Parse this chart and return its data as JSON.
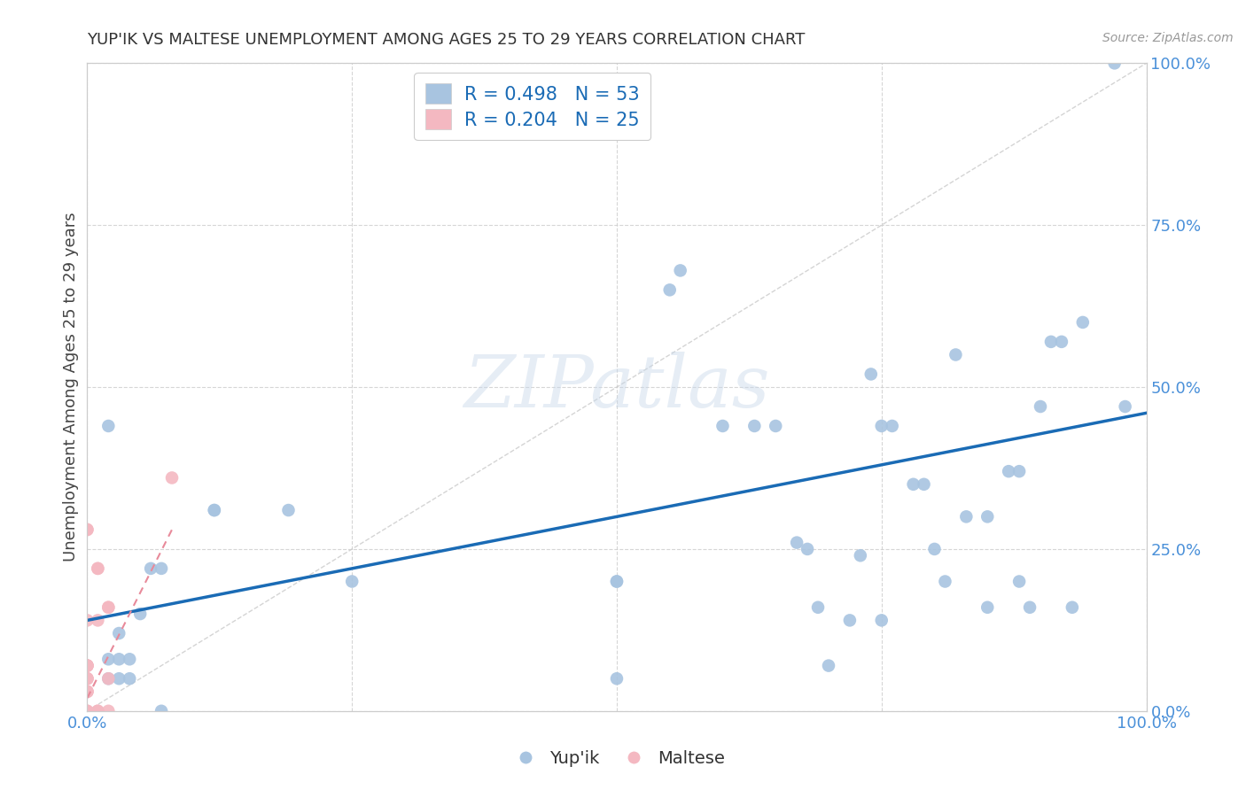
{
  "title": "YUP'IK VS MALTESE UNEMPLOYMENT AMONG AGES 25 TO 29 YEARS CORRELATION CHART",
  "source": "Source: ZipAtlas.com",
  "ylabel": "Unemployment Among Ages 25 to 29 years",
  "xlim": [
    0.0,
    1.0
  ],
  "ylim": [
    0.0,
    1.0
  ],
  "grid_ticks": [
    0.0,
    0.25,
    0.5,
    0.75,
    1.0
  ],
  "right_yticklabels": [
    "0.0%",
    "25.0%",
    "50.0%",
    "75.0%",
    "100.0%"
  ],
  "bottom_xticklabels_sparse": {
    "0.0": "0.0%",
    "1.0": "100.0%"
  },
  "background_color": "#ffffff",
  "grid_color": "#cccccc",
  "watermark": "ZIPatlas",
  "legend_R1": "R = 0.498",
  "legend_N1": "N = 53",
  "legend_R2": "R = 0.204",
  "legend_N2": "N = 25",
  "color_blue": "#a8c4e0",
  "color_pink": "#f4b8c1",
  "trendline_blue_color": "#1a6bb5",
  "trendline_pink_color": "#e88a9a",
  "trendline_blue_x0": 0.0,
  "trendline_blue_y0": 0.14,
  "trendline_blue_x1": 1.0,
  "trendline_blue_y1": 0.46,
  "trendline_pink_x0": 0.0,
  "trendline_pink_y0": 0.02,
  "trendline_pink_x1": 0.08,
  "trendline_pink_y1": 0.28,
  "diagonal_color": "#d0d0d0",
  "marker_size": 110,
  "tick_label_color": "#4a90d9",
  "tick_label_fontsize": 13,
  "yup_ik_data": [
    [
      0.02,
      0.44
    ],
    [
      0.02,
      0.08
    ],
    [
      0.02,
      0.05
    ],
    [
      0.03,
      0.05
    ],
    [
      0.03,
      0.08
    ],
    [
      0.03,
      0.12
    ],
    [
      0.04,
      0.05
    ],
    [
      0.04,
      0.08
    ],
    [
      0.05,
      0.15
    ],
    [
      0.06,
      0.22
    ],
    [
      0.07,
      0.22
    ],
    [
      0.07,
      0.0
    ],
    [
      0.12,
      0.31
    ],
    [
      0.12,
      0.31
    ],
    [
      0.19,
      0.31
    ],
    [
      0.25,
      0.2
    ],
    [
      0.5,
      0.05
    ],
    [
      0.5,
      0.2
    ],
    [
      0.5,
      0.2
    ],
    [
      0.55,
      0.65
    ],
    [
      0.56,
      0.68
    ],
    [
      0.6,
      0.44
    ],
    [
      0.63,
      0.44
    ],
    [
      0.65,
      0.44
    ],
    [
      0.67,
      0.26
    ],
    [
      0.68,
      0.25
    ],
    [
      0.69,
      0.16
    ],
    [
      0.7,
      0.07
    ],
    [
      0.72,
      0.14
    ],
    [
      0.73,
      0.24
    ],
    [
      0.74,
      0.52
    ],
    [
      0.75,
      0.44
    ],
    [
      0.75,
      0.14
    ],
    [
      0.76,
      0.44
    ],
    [
      0.78,
      0.35
    ],
    [
      0.79,
      0.35
    ],
    [
      0.8,
      0.25
    ],
    [
      0.81,
      0.2
    ],
    [
      0.82,
      0.55
    ],
    [
      0.83,
      0.3
    ],
    [
      0.85,
      0.16
    ],
    [
      0.85,
      0.3
    ],
    [
      0.87,
      0.37
    ],
    [
      0.88,
      0.2
    ],
    [
      0.88,
      0.37
    ],
    [
      0.89,
      0.16
    ],
    [
      0.9,
      0.47
    ],
    [
      0.91,
      0.57
    ],
    [
      0.92,
      0.57
    ],
    [
      0.93,
      0.16
    ],
    [
      0.94,
      0.6
    ],
    [
      0.97,
      1.0
    ],
    [
      0.98,
      0.47
    ]
  ],
  "maltese_data": [
    [
      0.0,
      0.28
    ],
    [
      0.0,
      0.28
    ],
    [
      0.0,
      0.14
    ],
    [
      0.0,
      0.07
    ],
    [
      0.0,
      0.07
    ],
    [
      0.0,
      0.07
    ],
    [
      0.0,
      0.07
    ],
    [
      0.0,
      0.05
    ],
    [
      0.0,
      0.05
    ],
    [
      0.0,
      0.05
    ],
    [
      0.0,
      0.03
    ],
    [
      0.0,
      0.03
    ],
    [
      0.0,
      0.03
    ],
    [
      0.0,
      0.0
    ],
    [
      0.0,
      0.0
    ],
    [
      0.01,
      0.0
    ],
    [
      0.01,
      0.0
    ],
    [
      0.01,
      0.22
    ],
    [
      0.01,
      0.22
    ],
    [
      0.01,
      0.14
    ],
    [
      0.02,
      0.0
    ],
    [
      0.02,
      0.05
    ],
    [
      0.02,
      0.16
    ],
    [
      0.02,
      0.16
    ],
    [
      0.08,
      0.36
    ]
  ]
}
